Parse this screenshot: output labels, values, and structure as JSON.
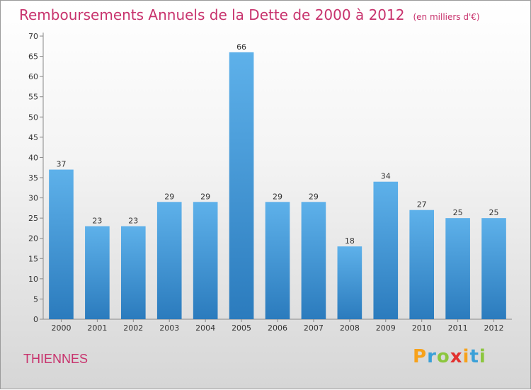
{
  "header": {
    "title": "Remboursements Annuels de la Dette de 2000 à 2012",
    "unit": "(en milliers d'€)"
  },
  "footer": {
    "commune": "THIENNES",
    "logo_letters": [
      "P",
      "r",
      "o",
      "x",
      "i",
      "t",
      "i"
    ],
    "logo_colors": [
      "#f7a21b",
      "#3aa0d8",
      "#8cc63e",
      "#e2312f",
      "#f7a21b",
      "#3aa0d8",
      "#8cc63e"
    ]
  },
  "colors": {
    "bar_top": "#5eb1ea",
    "bar_bottom": "#2b7bbd",
    "title": "#c8336d",
    "axis_text": "#333333"
  },
  "chart_data": {
    "type": "bar",
    "categories": [
      "2000",
      "2001",
      "2002",
      "2003",
      "2004",
      "2005",
      "2006",
      "2007",
      "2008",
      "2009",
      "2010",
      "2011",
      "2012"
    ],
    "values": [
      37,
      23,
      23,
      29,
      29,
      66,
      29,
      29,
      18,
      34,
      27,
      25,
      25
    ],
    "ylim": [
      0,
      70
    ],
    "yticks": [
      0,
      5,
      10,
      15,
      20,
      25,
      30,
      35,
      40,
      45,
      50,
      55,
      60,
      65,
      70
    ],
    "grid": false,
    "data_labels": true
  }
}
